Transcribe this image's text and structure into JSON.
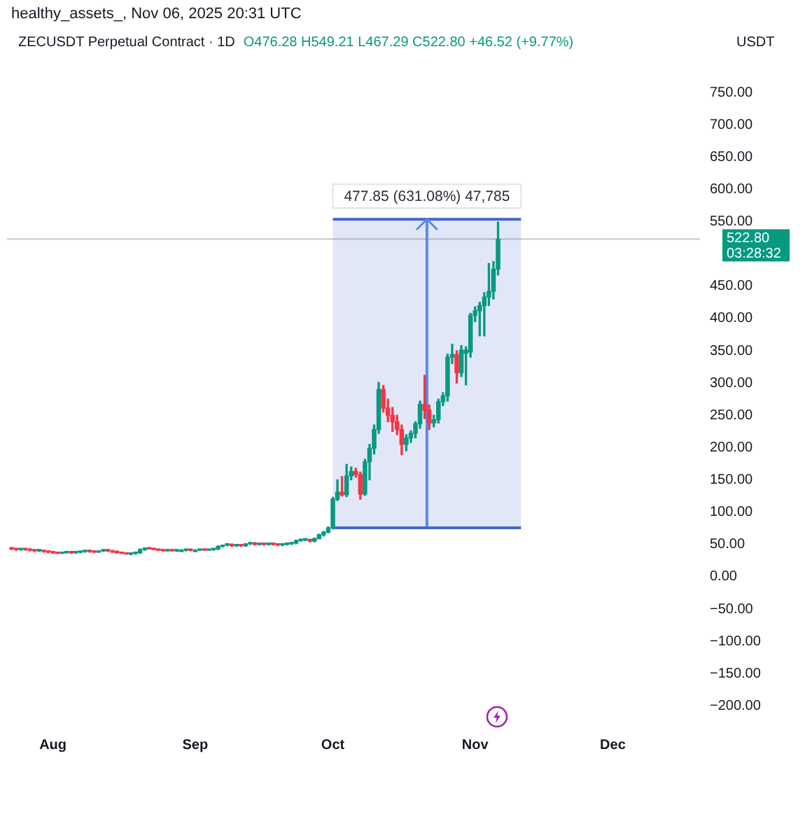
{
  "chart_data": {
    "type": "candlestick",
    "title": "ZECUSDT Perpetual Contract · 1D",
    "subtitle": "healthy_assets_, Nov 06, 2025 20:31 UTC",
    "ylabel": "USDT",
    "annotations": [
      "O476.28 H549.21 L467.29 C522.80 +46.52 (+9.77%)",
      {
        "text": "477.85 (631.08%) 47,785",
        "x": "2025-10-21T12:00",
        "y": 553.57
      }
    ],
    "x": [
      "2025-07-23",
      "2025-07-24",
      "2025-07-25",
      "2025-07-26",
      "2025-07-27",
      "2025-07-28",
      "2025-07-29",
      "2025-07-30",
      "2025-07-31",
      "2025-08-01",
      "2025-08-02",
      "2025-08-03",
      "2025-08-04",
      "2025-08-05",
      "2025-08-06",
      "2025-08-07",
      "2025-08-08",
      "2025-08-09",
      "2025-08-10",
      "2025-08-11",
      "2025-08-12",
      "2025-08-13",
      "2025-08-14",
      "2025-08-15",
      "2025-08-16",
      "2025-08-17",
      "2025-08-18",
      "2025-08-19",
      "2025-08-20",
      "2025-08-21",
      "2025-08-22",
      "2025-08-23",
      "2025-08-24",
      "2025-08-25",
      "2025-08-26",
      "2025-08-27",
      "2025-08-28",
      "2025-08-29",
      "2025-08-30",
      "2025-08-31",
      "2025-09-01",
      "2025-09-02",
      "2025-09-03",
      "2025-09-04",
      "2025-09-05",
      "2025-09-06",
      "2025-09-07",
      "2025-09-08",
      "2025-09-09",
      "2025-09-10",
      "2025-09-11",
      "2025-09-12",
      "2025-09-13",
      "2025-09-14",
      "2025-09-15",
      "2025-09-16",
      "2025-09-17",
      "2025-09-18",
      "2025-09-19",
      "2025-09-20",
      "2025-09-21",
      "2025-09-22",
      "2025-09-23",
      "2025-09-24",
      "2025-09-25",
      "2025-09-26",
      "2025-09-27",
      "2025-09-28",
      "2025-09-29",
      "2025-09-30",
      "2025-10-01",
      "2025-10-02",
      "2025-10-03",
      "2025-10-04",
      "2025-10-05",
      "2025-10-06",
      "2025-10-07",
      "2025-10-08",
      "2025-10-09",
      "2025-10-10",
      "2025-10-11",
      "2025-10-12",
      "2025-10-13",
      "2025-10-14",
      "2025-10-15",
      "2025-10-16",
      "2025-10-17",
      "2025-10-18",
      "2025-10-19",
      "2025-10-20",
      "2025-10-21",
      "2025-10-22",
      "2025-10-23",
      "2025-10-24",
      "2025-10-25",
      "2025-10-26",
      "2025-10-27",
      "2025-10-28",
      "2025-10-29",
      "2025-10-30",
      "2025-10-31",
      "2025-11-01",
      "2025-11-02",
      "2025-11-03",
      "2025-11-04",
      "2025-11-05",
      "2025-11-06"
    ],
    "ohlc": [
      [
        44,
        45,
        42,
        43
      ],
      [
        43,
        44,
        41,
        42
      ],
      [
        42,
        43,
        41,
        43
      ],
      [
        43,
        44,
        41,
        42
      ],
      [
        42,
        43,
        40,
        41
      ],
      [
        41,
        42,
        39,
        40
      ],
      [
        40,
        42,
        39,
        41
      ],
      [
        41,
        41,
        38,
        39
      ],
      [
        39,
        40,
        37,
        38
      ],
      [
        38,
        39,
        36,
        37
      ],
      [
        37,
        38,
        36,
        36
      ],
      [
        36,
        38,
        36,
        37
      ],
      [
        37,
        39,
        37,
        38
      ],
      [
        38,
        39,
        36,
        37
      ],
      [
        37,
        38,
        36,
        38
      ],
      [
        38,
        39,
        37,
        39
      ],
      [
        39,
        40,
        38,
        40
      ],
      [
        40,
        41,
        38,
        39
      ],
      [
        39,
        40,
        38,
        38
      ],
      [
        38,
        40,
        38,
        40
      ],
      [
        40,
        41,
        39,
        41
      ],
      [
        41,
        42,
        39,
        40
      ],
      [
        40,
        41,
        38,
        38
      ],
      [
        38,
        40,
        37,
        37
      ],
      [
        37,
        38,
        36,
        36
      ],
      [
        36,
        37,
        35,
        35
      ],
      [
        35,
        37,
        34,
        36
      ],
      [
        36,
        37,
        35,
        37
      ],
      [
        37,
        43,
        36,
        42
      ],
      [
        42,
        45,
        41,
        44
      ],
      [
        44,
        45,
        43,
        43
      ],
      [
        43,
        44,
        42,
        42
      ],
      [
        42,
        43,
        41,
        41
      ],
      [
        41,
        42,
        40,
        40
      ],
      [
        40,
        42,
        40,
        41
      ],
      [
        41,
        42,
        40,
        40
      ],
      [
        40,
        41,
        39,
        41
      ],
      [
        41,
        42,
        40,
        41
      ],
      [
        41,
        42,
        40,
        42
      ],
      [
        42,
        42,
        40,
        41
      ],
      [
        41,
        42,
        40,
        41
      ],
      [
        41,
        43,
        41,
        42
      ],
      [
        42,
        43,
        41,
        41
      ],
      [
        41,
        42,
        41,
        42
      ],
      [
        42,
        43,
        41,
        43
      ],
      [
        43,
        48,
        42,
        47
      ],
      [
        47,
        49,
        46,
        49
      ],
      [
        49,
        51,
        48,
        50
      ],
      [
        50,
        51,
        47,
        48
      ],
      [
        48,
        49,
        47,
        49
      ],
      [
        49,
        50,
        47,
        48
      ],
      [
        48,
        51,
        47,
        51
      ],
      [
        51,
        53,
        50,
        52
      ],
      [
        52,
        53,
        49,
        50
      ],
      [
        50,
        51,
        49,
        51
      ],
      [
        51,
        51,
        49,
        50
      ],
      [
        50,
        51,
        49,
        51
      ],
      [
        51,
        51,
        49,
        50
      ],
      [
        50,
        51,
        48,
        49
      ],
      [
        49,
        51,
        48,
        50
      ],
      [
        50,
        51,
        49,
        51
      ],
      [
        51,
        53,
        50,
        52
      ],
      [
        52,
        57,
        51,
        56
      ],
      [
        56,
        58,
        55,
        57
      ],
      [
        57,
        58,
        56,
        58
      ],
      [
        58,
        58,
        54,
        55
      ],
      [
        55,
        60,
        54,
        59
      ],
      [
        59,
        66,
        59,
        65
      ],
      [
        65,
        70,
        63,
        69
      ],
      [
        69,
        77,
        68,
        75.72
      ],
      [
        75.72,
        123,
        74,
        120
      ],
      [
        120,
        150,
        118,
        131
      ],
      [
        131,
        155,
        125,
        127
      ],
      [
        127,
        174,
        124,
        156
      ],
      [
        156,
        170,
        150,
        163
      ],
      [
        163,
        168,
        154,
        158
      ],
      [
        158,
        162,
        120,
        128
      ],
      [
        128,
        182,
        126,
        178
      ],
      [
        178,
        205,
        150,
        199
      ],
      [
        199,
        235,
        190,
        228
      ],
      [
        228,
        301,
        222,
        290
      ],
      [
        290,
        296,
        255,
        261
      ],
      [
        261,
        275,
        240,
        250
      ],
      [
        250,
        262,
        225,
        240
      ],
      [
        240,
        250,
        220,
        228
      ],
      [
        228,
        235,
        189,
        205
      ],
      [
        205,
        220,
        195,
        215
      ],
      [
        215,
        226,
        208,
        222
      ],
      [
        222,
        240,
        215,
        237
      ],
      [
        237,
        272,
        230,
        267
      ],
      [
        267,
        312,
        245,
        258
      ],
      [
        258,
        266,
        228,
        238
      ],
      [
        238,
        250,
        232,
        243
      ],
      [
        243,
        275,
        238,
        271
      ],
      [
        271,
        285,
        265,
        280
      ],
      [
        280,
        345,
        272,
        340
      ],
      [
        340,
        360,
        330,
        344
      ],
      [
        344,
        350,
        300,
        316
      ],
      [
        316,
        358,
        310,
        351
      ],
      [
        346,
        356,
        297,
        351
      ],
      [
        348,
        408,
        340,
        405
      ],
      [
        405,
        418,
        395,
        412
      ],
      [
        412,
        425,
        373,
        420
      ],
      [
        420,
        440,
        373,
        433
      ],
      [
        433,
        485,
        420,
        442
      ],
      [
        442,
        488,
        430,
        476.28
      ],
      [
        476.28,
        549.21,
        467.29,
        522.8
      ]
    ],
    "colors": [
      "#f23645",
      "#f23645",
      "#089981",
      "#f23645",
      "#f23645",
      "#f23645",
      "#089981",
      "#f23645",
      "#f23645",
      "#f23645",
      "#f23645",
      "#089981",
      "#089981",
      "#f23645",
      "#089981",
      "#089981",
      "#089981",
      "#f23645",
      "#f23645",
      "#089981",
      "#089981",
      "#f23645",
      "#f23645",
      "#f23645",
      "#f23645",
      "#f23645",
      "#089981",
      "#089981",
      "#089981",
      "#089981",
      "#f23645",
      "#f23645",
      "#f23645",
      "#f23645",
      "#089981",
      "#f23645",
      "#089981",
      "#089981",
      "#089981",
      "#f23645",
      "#089981",
      "#089981",
      "#f23645",
      "#089981",
      "#089981",
      "#089981",
      "#089981",
      "#089981",
      "#f23645",
      "#089981",
      "#f23645",
      "#089981",
      "#089981",
      "#f23645",
      "#089981",
      "#f23645",
      "#089981",
      "#f23645",
      "#f23645",
      "#089981",
      "#089981",
      "#089981",
      "#089981",
      "#089981",
      "#089981",
      "#f23645",
      "#089981",
      "#089981",
      "#089981",
      "#089981",
      "#089981",
      "#089981",
      "#f23645",
      "#089981",
      "#089981",
      "#f23645",
      "#f23645",
      "#089981",
      "#089981",
      "#089981",
      "#089981",
      "#f23645",
      "#f23645",
      "#f23645",
      "#f23645",
      "#f23645",
      "#089981",
      "#089981",
      "#089981",
      "#089981",
      "#f23645",
      "#f23645",
      "#089981",
      "#089981",
      "#089981",
      "#089981",
      "#089981",
      "#f23645",
      "#089981",
      "#089981",
      "#089981",
      "#089981",
      "#089981",
      "#089981",
      "#089981",
      "#089981",
      "#089981"
    ],
    "series": [
      {
        "type": "line",
        "x": [
          "2025-10-01",
          "2025-11-11"
        ],
        "values": [
          553.57,
          553.57
        ],
        "lower": [
          75.72,
          75.72
        ],
        "upper": [
          553.57,
          553.57
        ],
        "color": "#4468c8"
      },
      {
        "type": "line",
        "x": [
          "2025-10-01",
          "2025-11-11"
        ],
        "values": [
          75.72,
          75.72
        ],
        "color": "#4468c8"
      },
      {
        "type": "line",
        "x": [
          "2025-10-21T12:00",
          "2025-10-21T12:00"
        ],
        "values": [
          75.72,
          553.57
        ],
        "color": "#5a8be6"
      }
    ],
    "xlim": [
      "2025-07-22",
      "2025-12-20"
    ],
    "xticks": [
      {
        "value": "2025-08-01",
        "label": "Aug"
      },
      {
        "value": "2025-09-01",
        "label": "Sep"
      },
      {
        "value": "2025-10-01",
        "label": "Oct"
      },
      {
        "value": "2025-11-01",
        "label": "Nov"
      },
      {
        "value": "2025-12-01",
        "label": "Dec"
      }
    ],
    "ylim": [
      -200,
      750
    ],
    "yticks": [
      {
        "value": -200,
        "label": "−200.00"
      },
      {
        "value": -150,
        "label": "−150.00"
      },
      {
        "value": -100,
        "label": "−100.00"
      },
      {
        "value": -50,
        "label": "−50.00"
      },
      {
        "value": 0,
        "label": "0.00"
      },
      {
        "value": 50,
        "label": "50.00"
      },
      {
        "value": 100,
        "label": "100.00"
      },
      {
        "value": 150,
        "label": "150.00"
      },
      {
        "value": 200,
        "label": "200.00"
      },
      {
        "value": 250,
        "label": "250.00"
      },
      {
        "value": 300,
        "label": "300.00"
      },
      {
        "value": 350,
        "label": "350.00"
      },
      {
        "value": 400,
        "label": "400.00"
      },
      {
        "value": 450,
        "label": "450.00"
      },
      {
        "value": 550,
        "label": "550.00"
      },
      {
        "value": 600,
        "label": "600.00"
      },
      {
        "value": 650,
        "label": "650.00"
      },
      {
        "value": 700,
        "label": "700.00"
      },
      {
        "value": 750,
        "label": "750.00"
      }
    ],
    "ref_lines": [
      {
        "axis": "y",
        "value": 522.8,
        "label": "522.80\n03:28:32",
        "color": "#c4c7cf"
      }
    ],
    "grid": false,
    "legend": false
  }
}
